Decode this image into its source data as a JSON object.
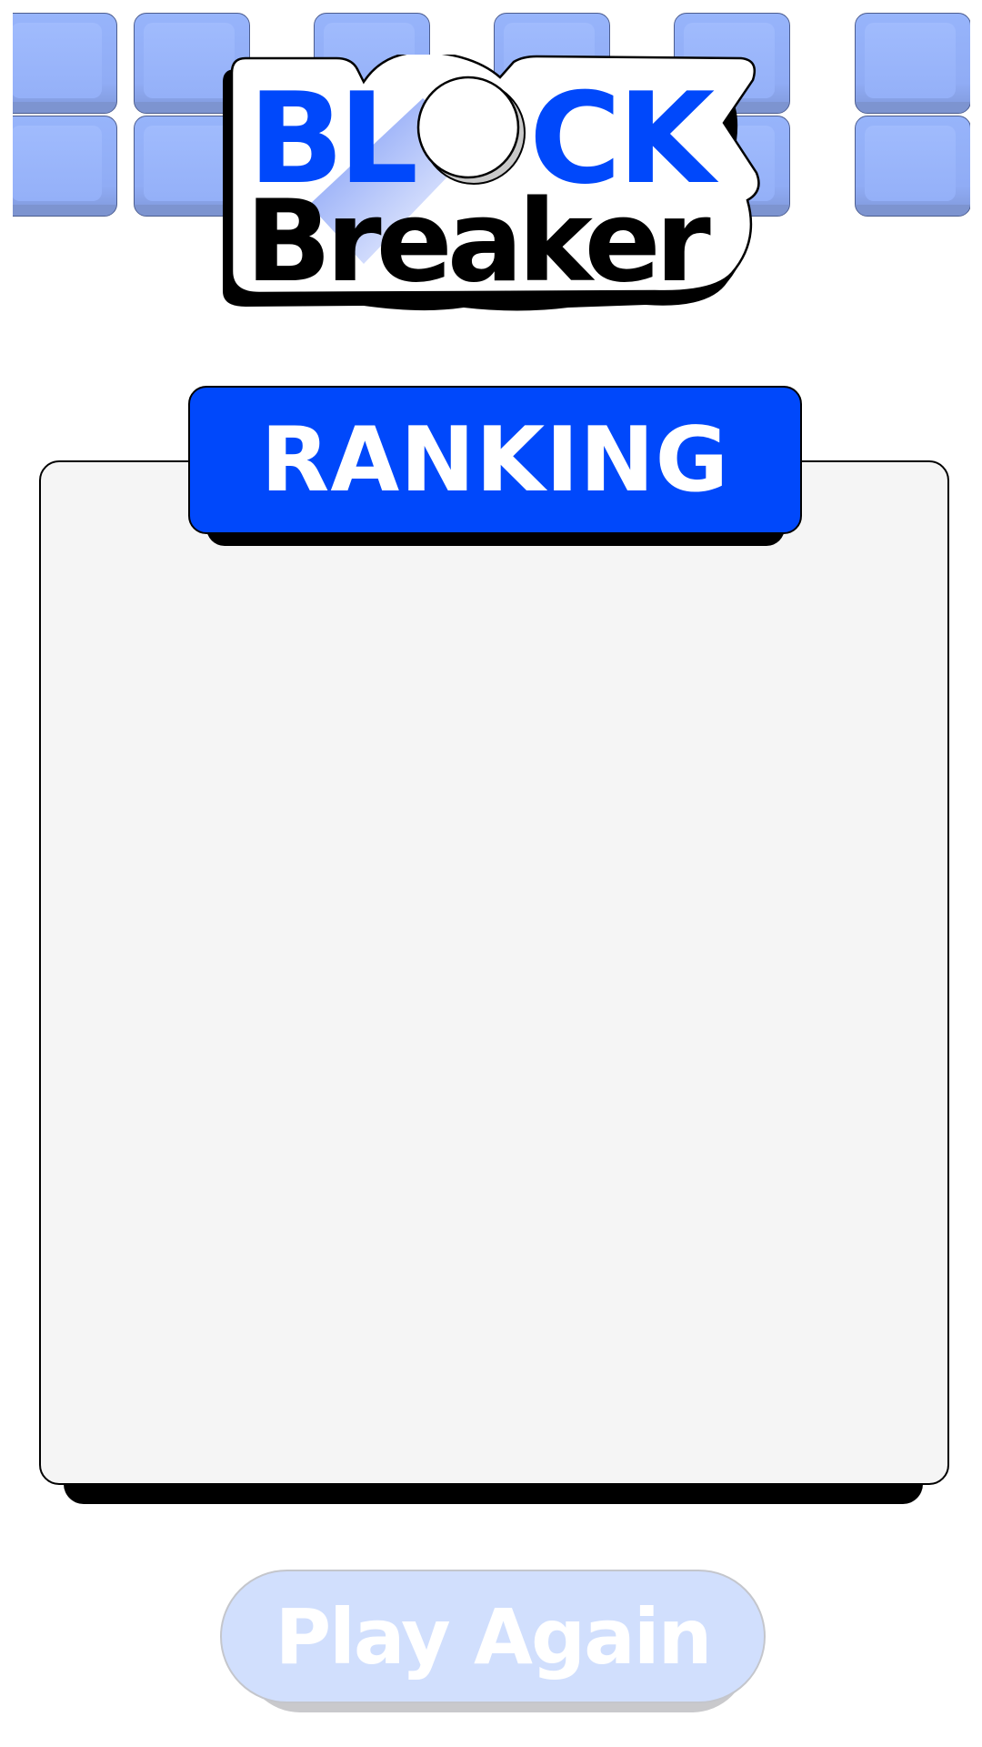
{
  "logo": {
    "line1_part1": "BL",
    "line1_part2": "CK",
    "line2": "Breaker",
    "ball_icon": "ball-icon",
    "colors": {
      "accent": "#0048fb",
      "text": "#000000"
    }
  },
  "header": {
    "brick_color": "#93b0f8",
    "brick_icon": "brick-tile"
  },
  "ranking": {
    "title": "RANKING",
    "panel_color": "#f5f5f5",
    "tab_color": "#0048fb"
  },
  "actions": {
    "play_again_label": "Play Again",
    "play_again_color": "#d1dffd"
  }
}
